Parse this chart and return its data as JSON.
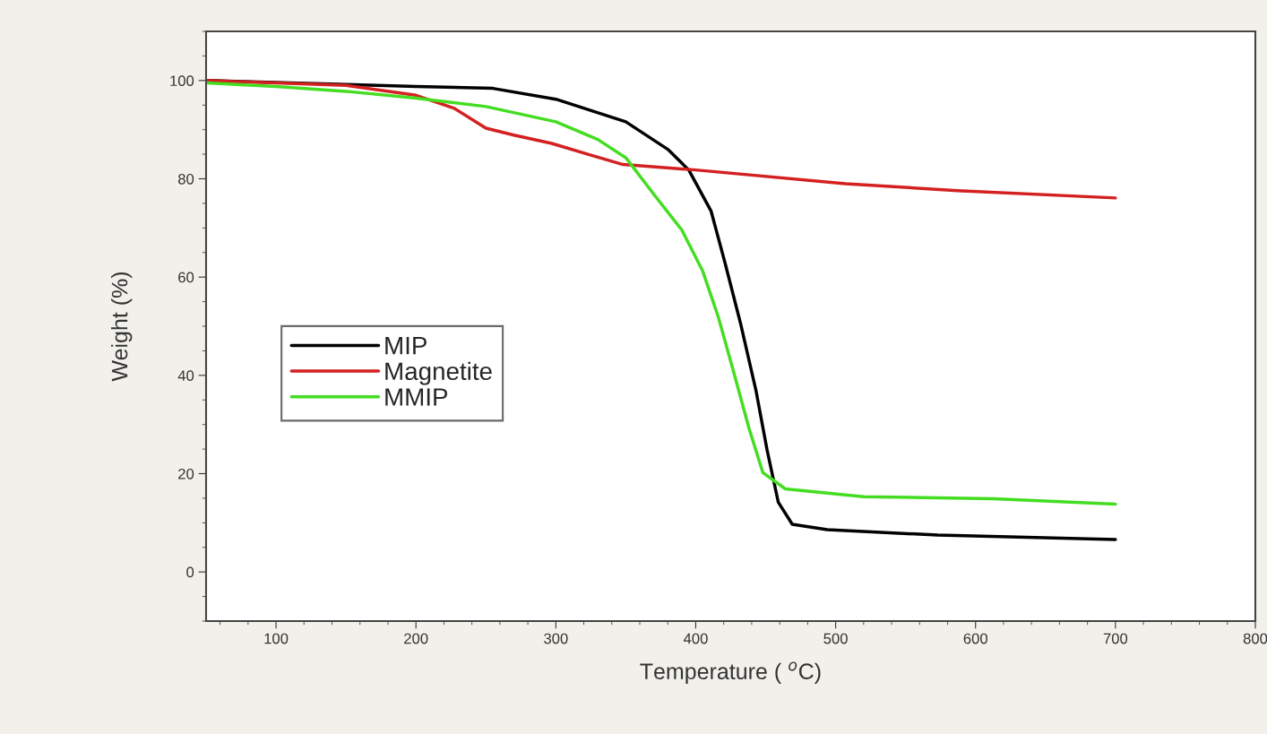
{
  "chart_data": {
    "type": "line",
    "xlabel": "Temperature ( $^{o}$C)",
    "ylabel": "Weight (%)",
    "xlim": [
      50,
      800
    ],
    "xticks": [
      100,
      200,
      300,
      400,
      500,
      600,
      700,
      800
    ],
    "ylim": [
      -10,
      110
    ],
    "yticks": [
      0,
      20,
      40,
      60,
      80,
      100
    ],
    "grid": false,
    "legend": "left",
    "marker": "none",
    "line_style": "solid",
    "series": [
      {
        "name": "MIP",
        "color": "#000000",
        "x": [
          50,
          150,
          200,
          255,
          300,
          350,
          380,
          395,
          411,
          421,
          432,
          443,
          451,
          459,
          469,
          494,
          573,
          700
        ],
        "values": [
          100,
          99.2,
          98.8,
          98.4,
          96.2,
          91.6,
          86,
          81.8,
          73.4,
          62.8,
          50.6,
          37,
          24.8,
          14.2,
          9.7,
          8.6,
          7.5,
          6.6
        ]
      },
      {
        "name": "Magnetite",
        "color": "#d42020",
        "x": [
          50,
          100,
          150,
          200,
          227,
          250,
          270,
          297,
          324,
          348,
          400,
          507,
          587,
          700
        ],
        "values": [
          100,
          99.5,
          99,
          97,
          94.4,
          90.3,
          88.9,
          87.2,
          84.9,
          82.9,
          81.8,
          79,
          77.6,
          76.1
        ]
      },
      {
        "name": "MMIP",
        "color": "#44dd22",
        "x": [
          50,
          100,
          150,
          200,
          250,
          300,
          330,
          350,
          371,
          390,
          405,
          416,
          427,
          438,
          448,
          464,
          520,
          613,
          700
        ],
        "values": [
          99.5,
          98.8,
          97.8,
          96.4,
          94.7,
          91.6,
          88,
          84.3,
          76.5,
          69.6,
          61.2,
          52,
          40.8,
          29.3,
          20.2,
          16.9,
          15.3,
          14.9,
          13.8
        ]
      }
    ]
  }
}
